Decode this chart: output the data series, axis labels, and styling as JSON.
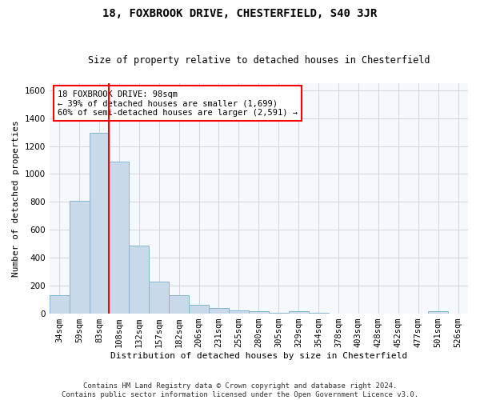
{
  "title": "18, FOXBROOK DRIVE, CHESTERFIELD, S40 3JR",
  "subtitle": "Size of property relative to detached houses in Chesterfield",
  "xlabel": "Distribution of detached houses by size in Chesterfield",
  "ylabel": "Number of detached properties",
  "footer_line1": "Contains HM Land Registry data © Crown copyright and database right 2024.",
  "footer_line2": "Contains public sector information licensed under the Open Government Licence v3.0.",
  "categories": [
    "34sqm",
    "59sqm",
    "83sqm",
    "108sqm",
    "132sqm",
    "157sqm",
    "182sqm",
    "206sqm",
    "231sqm",
    "255sqm",
    "280sqm",
    "305sqm",
    "329sqm",
    "354sqm",
    "378sqm",
    "403sqm",
    "428sqm",
    "452sqm",
    "477sqm",
    "501sqm",
    "526sqm"
  ],
  "bar_heights": [
    135,
    810,
    1295,
    1090,
    490,
    230,
    130,
    65,
    40,
    25,
    15,
    5,
    15,
    5,
    0,
    0,
    0,
    0,
    0,
    15,
    0
  ],
  "bar_color": "#c8daea",
  "bar_edge_color": "#88b4d0",
  "bar_width": 1.0,
  "ylim": [
    0,
    1650
  ],
  "yticks": [
    0,
    200,
    400,
    600,
    800,
    1000,
    1200,
    1400,
    1600
  ],
  "red_line_x": 2.5,
  "annotation_text": "18 FOXBROOK DRIVE: 98sqm\n← 39% of detached houses are smaller (1,699)\n60% of semi-detached houses are larger (2,591) →",
  "background_color": "#ffffff",
  "plot_bg_color": "#f5f8fc",
  "grid_color": "#c8c8c8",
  "title_fontsize": 10,
  "subtitle_fontsize": 8.5,
  "ylabel_fontsize": 8,
  "xlabel_fontsize": 8,
  "tick_fontsize": 7.5,
  "footer_fontsize": 6.5,
  "annot_fontsize": 7.5
}
